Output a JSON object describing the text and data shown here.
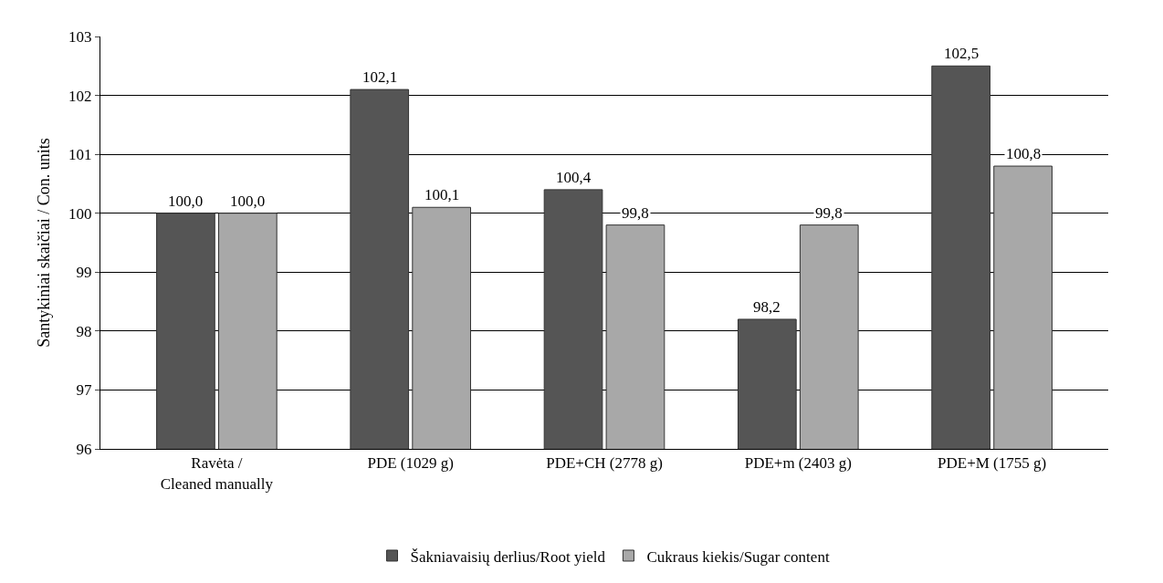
{
  "chart_data": {
    "type": "bar",
    "ylabel": "Santykiniai skaičiai / Con. units",
    "categories": [
      "Ravėta /\nCleaned manually",
      "PDE (1029 g)",
      "PDE+CH (2778 g)",
      "PDE+m (2403 g)",
      "PDE+M (1755 g)"
    ],
    "series": [
      {
        "name": "Šakniavaisių derlius/Root yield",
        "color": "#555555",
        "values": [
          100.0,
          102.1,
          100.4,
          98.2,
          102.5
        ],
        "value_labels": [
          "100,0",
          "102,1",
          "100,4",
          "98,2",
          "102,5"
        ]
      },
      {
        "name": "Cukraus kiekis/Sugar content",
        "color": "#a8a8a8",
        "values": [
          100.0,
          100.1,
          99.8,
          99.8,
          100.8
        ],
        "value_labels": [
          "100,0",
          "100,1",
          "99,8",
          "99,8",
          "100,8"
        ]
      }
    ],
    "ylim": [
      96,
      103
    ],
    "yticks": [
      96,
      97,
      98,
      99,
      100,
      101,
      102,
      103
    ],
    "grid": "y",
    "legend": "bottom"
  }
}
